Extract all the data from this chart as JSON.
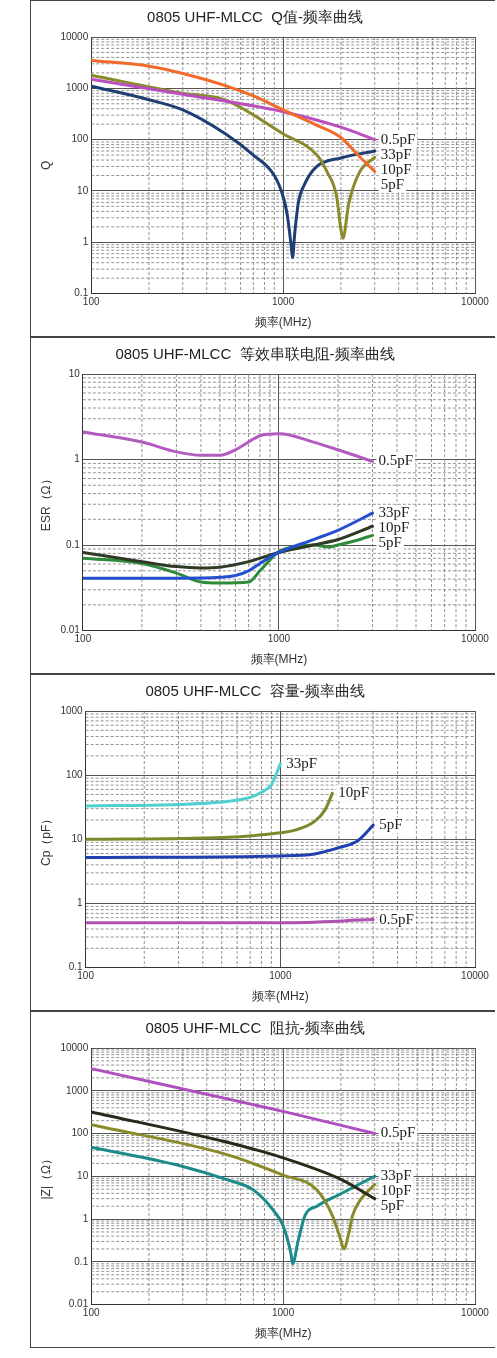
{
  "chart_data": [
    {
      "type": "line",
      "title": "0805 UHF-MLCC  Q值-频率曲线",
      "xlabel": "频率(MHz)",
      "ylabel": "Q",
      "log": "xy",
      "xlim": [
        100,
        10000
      ],
      "xticks": [
        100,
        1000,
        10000
      ],
      "ylim": [
        0.1,
        10000
      ],
      "yticks": [
        0.1,
        1,
        10,
        100,
        1000,
        10000
      ],
      "grid": true,
      "series": [
        {
          "name": "5pF",
          "color": "#f26b2a",
          "x": [
            100,
            200,
            300,
            500,
            700,
            1000,
            1500,
            2000,
            2500,
            3000
          ],
          "values": [
            3500,
            2700,
            1950,
            1130,
            710,
            380,
            190,
            110,
            47,
            24
          ]
        },
        {
          "name": "0.5pF",
          "color": "#b94fc0",
          "x": [
            100,
            300,
            1000,
            2000,
            3000
          ],
          "values": [
            1500,
            770,
            350,
            175,
            100
          ]
        },
        {
          "name": "10pF",
          "color": "#8a8a2a",
          "x": [
            100,
            300,
            500,
            1000,
            1500,
            1700,
            1900,
            2000,
            2050,
            2200,
            2500,
            3000
          ],
          "values": [
            1800,
            800,
            590,
            130,
            50,
            23,
            7.8,
            1.8,
            1.2,
            5.8,
            23,
            45
          ]
        },
        {
          "name": "33pF",
          "color": "#1e3f73",
          "x": [
            100,
            200,
            300,
            500,
            700,
            900,
            1000,
            1050,
            1100,
            1120,
            1150,
            1200,
            1300,
            1500,
            2000,
            3000
          ],
          "values": [
            1100,
            600,
            380,
            130,
            50,
            20,
            7.8,
            3.5,
            0.9,
            0.5,
            1.5,
            5.8,
            14,
            30,
            44,
            60
          ]
        }
      ]
    },
    {
      "type": "line",
      "title": "0805 UHF-MLCC  等效串联电阻-频率曲线",
      "xlabel": "频率(MHz)",
      "ylabel": "ESR（Ω）",
      "log": "xy",
      "xlim": [
        100,
        10000
      ],
      "xticks": [
        100,
        1000,
        10000
      ],
      "ylim": [
        0.01,
        10
      ],
      "yticks": [
        0.01,
        0.1,
        1,
        10
      ],
      "grid": true,
      "series": [
        {
          "name": "0.5pF",
          "color": "#b35cc0",
          "x": [
            100,
            200,
            300,
            400,
            500,
            600,
            700,
            800,
            1000,
            1500,
            2000,
            3000
          ],
          "values": [
            2.1,
            1.6,
            1.23,
            1.12,
            1.12,
            1.3,
            1.6,
            1.9,
            2.0,
            1.6,
            1.3,
            0.95
          ]
        },
        {
          "name": "33pF",
          "color": "#2450d0",
          "x": [
            100,
            300,
            500,
            600,
            700,
            800,
            1000,
            1500,
            2000,
            3000
          ],
          "values": [
            0.041,
            0.041,
            0.042,
            0.044,
            0.05,
            0.061,
            0.082,
            0.116,
            0.149,
            0.236
          ]
        },
        {
          "name": "10pF",
          "color": "#2f3a25",
          "x": [
            100,
            200,
            300,
            400,
            500,
            700,
            1000,
            1500,
            2000,
            3000
          ],
          "values": [
            0.082,
            0.064,
            0.056,
            0.054,
            0.055,
            0.064,
            0.082,
            0.1,
            0.116,
            0.166
          ]
        },
        {
          "name": "5pF",
          "color": "#2e8b3a",
          "x": [
            100,
            200,
            300,
            400,
            500,
            700,
            800,
            900,
            1000,
            1200,
            1500,
            1800,
            2000,
            2500,
            3000
          ],
          "values": [
            0.07,
            0.061,
            0.047,
            0.037,
            0.036,
            0.037,
            0.05,
            0.067,
            0.084,
            0.095,
            0.1,
            0.095,
            0.1,
            0.114,
            0.13
          ]
        }
      ]
    },
    {
      "type": "line",
      "title": "0805 UHF-MLCC  容量-频率曲线",
      "xlabel": "频率(MHz)",
      "ylabel": "Cp（pF）",
      "log": "xy",
      "xlim": [
        100,
        10000
      ],
      "xticks": [
        100,
        1000,
        10000
      ],
      "ylim": [
        0.1,
        1000
      ],
      "yticks": [
        0.1,
        1,
        10,
        100,
        1000
      ],
      "grid": true,
      "series": [
        {
          "name": "33pF",
          "color": "#4fd0d0",
          "x": [
            100,
            300,
            500,
            700,
            800,
            900,
            1000
          ],
          "values": [
            33,
            35,
            38,
            45,
            54,
            71,
            150
          ]
        },
        {
          "name": "10pF",
          "color": "#7a8a2a",
          "x": [
            100,
            500,
            1000,
            1200,
            1500,
            1700,
            1850
          ],
          "values": [
            10,
            10.7,
            12.6,
            14,
            19,
            29,
            52
          ]
        },
        {
          "name": "5pF",
          "color": "#2040b0",
          "x": [
            100,
            1000,
            1500,
            2000,
            2500,
            3000
          ],
          "values": [
            5.2,
            5.5,
            5.9,
            7.4,
            9.5,
            16.6
          ]
        },
        {
          "name": "0.5pF",
          "color": "#b050b0",
          "x": [
            100,
            1000,
            3000
          ],
          "values": [
            0.5,
            0.5,
            0.56
          ]
        }
      ]
    },
    {
      "type": "line",
      "title": "0805 UHF-MLCC  阻抗-频率曲线",
      "xlabel": "频率(MHz)",
      "ylabel": "|Z|（Ω）",
      "log": "xy",
      "xlim": [
        100,
        10000
      ],
      "xticks": [
        100,
        1000,
        10000
      ],
      "ylim": [
        0.01,
        10000
      ],
      "yticks": [
        0.01,
        0.1,
        1,
        10,
        100,
        1000,
        10000
      ],
      "grid": true,
      "series": [
        {
          "name": "0.5pF",
          "color": "#b050c0",
          "x": [
            100,
            1000,
            3000
          ],
          "values": [
            3300,
            330,
            100
          ]
        },
        {
          "name": "5pF",
          "color": "#2a2a1a",
          "x": [
            100,
            500,
            1000,
            2000,
            3000
          ],
          "values": [
            320,
            64,
            27,
            8.5,
            3.0
          ]
        },
        {
          "name": "10pF",
          "color": "#8a8a2a",
          "x": [
            100,
            500,
            1000,
            1500,
            1800,
            2000,
            2070,
            2200,
            2300,
            2500,
            3000
          ],
          "values": [
            160,
            33,
            10.7,
            4.8,
            1.25,
            0.32,
            0.2,
            0.47,
            1.2,
            2.6,
            6.4
          ]
        },
        {
          "name": "33pF",
          "color": "#1a8a8a",
          "x": [
            100,
            300,
            500,
            700,
            900,
            1000,
            1100,
            1120,
            1200,
            1300,
            1500,
            2000,
            3000
          ],
          "values": [
            48,
            17,
            8.6,
            4.8,
            1.5,
            0.7,
            0.15,
            0.09,
            0.32,
            1.2,
            2.0,
            3.9,
            10
          ]
        }
      ]
    }
  ]
}
